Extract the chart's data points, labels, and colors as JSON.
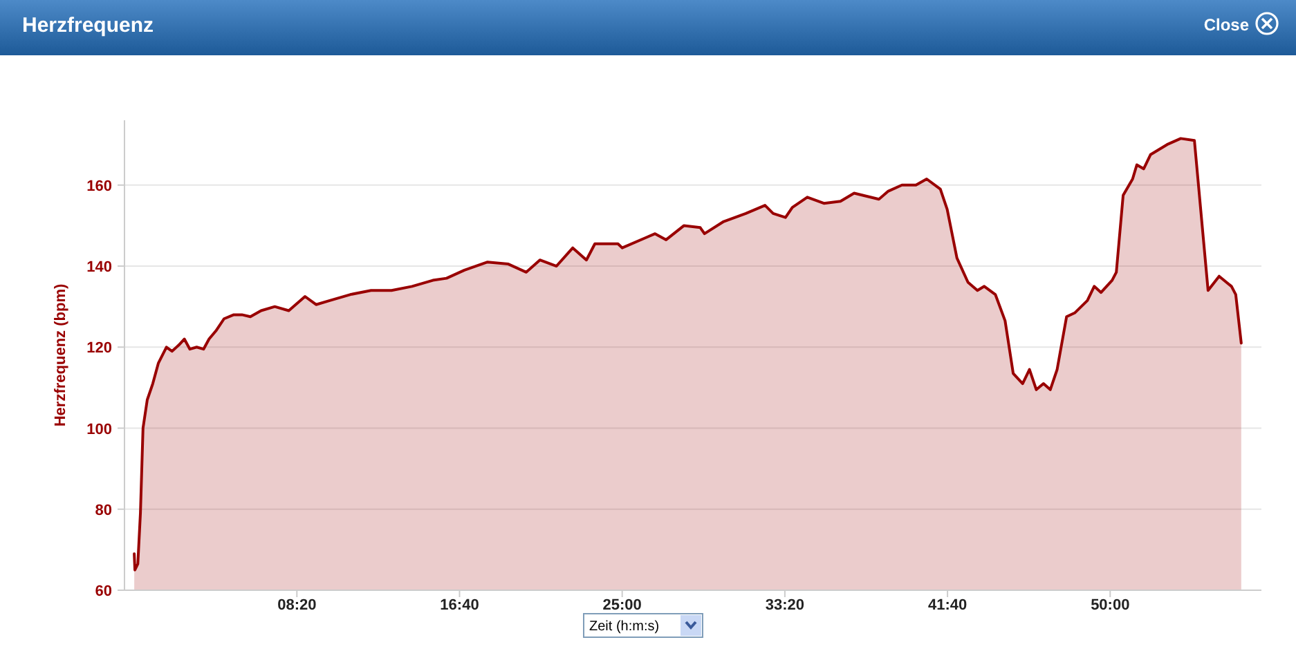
{
  "chart_data": {
    "type": "area",
    "title": "Herzfrequenz",
    "ylabel": "Herzfrequenz (bpm)",
    "xlabel": "Zeit (h:m:s)",
    "annotations": [
      "Close"
    ],
    "xlim": [
      -30,
      3465
    ],
    "ylim": [
      60,
      176
    ],
    "xticks": [
      {
        "value": 500,
        "label": "08:20"
      },
      {
        "value": 1000,
        "label": "16:40"
      },
      {
        "value": 1500,
        "label": "25:00"
      },
      {
        "value": 2000,
        "label": "33:20"
      },
      {
        "value": 2500,
        "label": "41:40"
      },
      {
        "value": 3000,
        "label": "50:00"
      }
    ],
    "yticks": [
      60,
      80,
      100,
      120,
      140,
      160
    ],
    "grid": "y",
    "marker": "none",
    "line_style": "solid",
    "series": [
      {
        "color": "#990000",
        "x": [
          0,
          2,
          11,
          19,
          27,
          40,
          57,
          74,
          99,
          116,
          137,
          154,
          171,
          192,
          213,
          230,
          251,
          276,
          306,
          331,
          357,
          390,
          432,
          475,
          525,
          559,
          601,
          665,
          728,
          791,
          854,
          918,
          960,
          1015,
          1086,
          1150,
          1205,
          1247,
          1298,
          1348,
          1390,
          1416,
          1487,
          1500,
          1572,
          1601,
          1635,
          1690,
          1740,
          1753,
          1812,
          1880,
          1939,
          1964,
          2002,
          2023,
          2069,
          2120,
          2171,
          2213,
          2289,
          2318,
          2360,
          2403,
          2436,
          2478,
          2499,
          2529,
          2563,
          2592,
          2613,
          2647,
          2677,
          2702,
          2731,
          2752,
          2773,
          2795,
          2816,
          2837,
          2866,
          2892,
          2930,
          2951,
          2972,
          3006,
          3019,
          3040,
          3069,
          3082,
          3103,
          3124,
          3175,
          3217,
          3259,
          3301,
          3335,
          3373,
          3386,
          3403
        ],
        "values": [
          69,
          65,
          66.5,
          79,
          100,
          107,
          111,
          116,
          120,
          119,
          120.5,
          122,
          119.5,
          120,
          119.5,
          122,
          124,
          127,
          128,
          128,
          127.5,
          129,
          130,
          129,
          132.5,
          130.5,
          131.5,
          133,
          134,
          134,
          135,
          136.5,
          137,
          139,
          141,
          140.5,
          138.5,
          141.5,
          140,
          144.5,
          141.5,
          145.5,
          145.5,
          144.5,
          147,
          148,
          146.5,
          150,
          149.5,
          148,
          151,
          153,
          155,
          153,
          152,
          154.5,
          157,
          155.5,
          156,
          158,
          156.5,
          158.5,
          160,
          160,
          161.5,
          159,
          154,
          142,
          136,
          134,
          135,
          133,
          126.5,
          113.5,
          111,
          114.5,
          109.5,
          111,
          109.5,
          114.5,
          127.5,
          128.5,
          131.5,
          135,
          133.5,
          136.5,
          138.5,
          157.5,
          161.5,
          165,
          164,
          167.5,
          170,
          171.5,
          171,
          134,
          137.5,
          135,
          133,
          121
        ]
      }
    ]
  }
}
